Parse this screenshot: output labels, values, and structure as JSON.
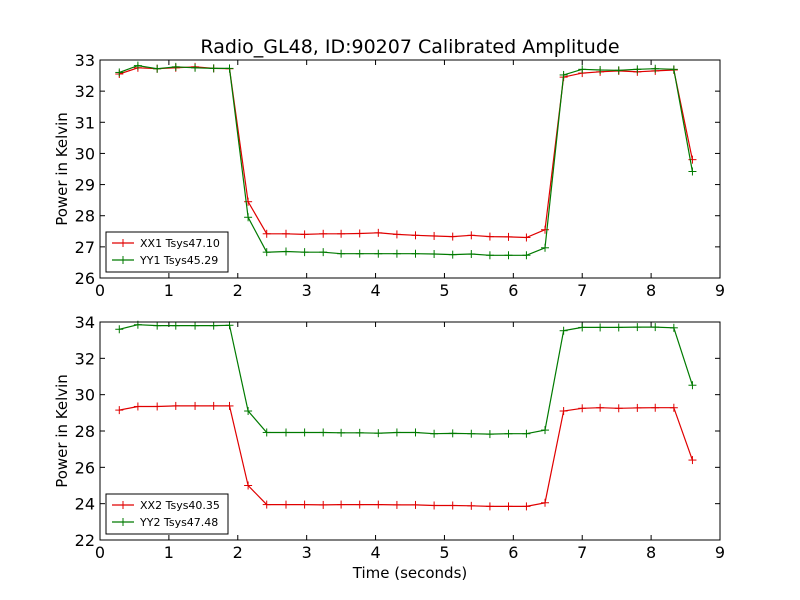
{
  "figure": {
    "title": "Radio_GL48, ID:90207 Calibrated Amplitude",
    "xlabel": "Time (seconds)"
  },
  "colors": {
    "red": "#e00000",
    "green": "#007a00"
  },
  "chart_data": [
    {
      "type": "line",
      "ylabel": "Power in Kelvin",
      "xlim": [
        0,
        9
      ],
      "ylim": [
        26,
        33
      ],
      "xticks": [
        "0",
        "1",
        "2",
        "3",
        "4",
        "5",
        "6",
        "7",
        "8",
        "9"
      ],
      "yticks": [
        "26",
        "27",
        "28",
        "29",
        "30",
        "31",
        "32",
        "33"
      ],
      "legend_position": "lower-left",
      "x": [
        0.28,
        0.55,
        0.83,
        1.1,
        1.38,
        1.65,
        1.88,
        2.15,
        2.42,
        2.7,
        2.97,
        3.24,
        3.5,
        3.77,
        4.04,
        4.31,
        4.58,
        4.85,
        5.12,
        5.39,
        5.66,
        5.93,
        6.19,
        6.46,
        6.73,
        7.0,
        7.26,
        7.53,
        7.8,
        8.06,
        8.33,
        8.6
      ],
      "series": [
        {
          "name": "XX1 Tsys47.10",
          "color": "red",
          "values": [
            32.55,
            32.75,
            32.72,
            32.75,
            32.78,
            32.73,
            32.72,
            28.45,
            27.42,
            27.42,
            27.4,
            27.42,
            27.42,
            27.43,
            27.45,
            27.4,
            27.37,
            27.35,
            27.33,
            27.37,
            27.33,
            27.32,
            27.3,
            27.55,
            32.45,
            32.58,
            32.62,
            32.65,
            32.62,
            32.65,
            32.68,
            29.8
          ]
        },
        {
          "name": "YY1 Tsys45.29",
          "color": "green",
          "values": [
            32.6,
            32.82,
            32.72,
            32.78,
            32.75,
            32.73,
            32.73,
            27.95,
            26.83,
            26.85,
            26.83,
            26.83,
            26.78,
            26.78,
            26.78,
            26.78,
            26.78,
            26.77,
            26.75,
            26.77,
            26.73,
            26.73,
            26.73,
            26.97,
            32.52,
            32.7,
            32.68,
            32.67,
            32.7,
            32.72,
            32.7,
            29.42
          ]
        }
      ]
    },
    {
      "type": "line",
      "ylabel": "Power in Kelvin",
      "xlabel": "Time (seconds)",
      "xlim": [
        0,
        9
      ],
      "ylim": [
        22,
        34
      ],
      "xticks": [
        "0",
        "1",
        "2",
        "3",
        "4",
        "5",
        "6",
        "7",
        "8",
        "9"
      ],
      "yticks": [
        "22",
        "24",
        "26",
        "28",
        "30",
        "32",
        "34"
      ],
      "legend_position": "lower-left",
      "x": [
        0.28,
        0.55,
        0.83,
        1.1,
        1.38,
        1.65,
        1.88,
        2.15,
        2.42,
        2.7,
        2.97,
        3.24,
        3.5,
        3.77,
        4.04,
        4.31,
        4.58,
        4.85,
        5.12,
        5.39,
        5.66,
        5.93,
        6.19,
        6.46,
        6.73,
        7.0,
        7.26,
        7.53,
        7.8,
        8.06,
        8.33,
        8.6
      ],
      "series": [
        {
          "name": "XX2 Tsys40.35",
          "color": "red",
          "values": [
            29.15,
            29.35,
            29.35,
            29.38,
            29.38,
            29.38,
            29.38,
            25.0,
            23.95,
            23.95,
            23.95,
            23.93,
            23.95,
            23.95,
            23.95,
            23.93,
            23.93,
            23.9,
            23.9,
            23.88,
            23.85,
            23.85,
            23.85,
            24.05,
            29.1,
            29.25,
            29.28,
            29.25,
            29.27,
            29.28,
            29.28,
            26.4
          ]
        },
        {
          "name": "YY2 Tsys47.48",
          "color": "green",
          "values": [
            33.6,
            33.85,
            33.8,
            33.8,
            33.8,
            33.8,
            33.82,
            29.1,
            27.92,
            27.92,
            27.92,
            27.92,
            27.9,
            27.9,
            27.88,
            27.92,
            27.92,
            27.85,
            27.87,
            27.85,
            27.83,
            27.85,
            27.85,
            28.05,
            33.52,
            33.7,
            33.7,
            33.7,
            33.72,
            33.72,
            33.68,
            30.52
          ]
        }
      ]
    }
  ]
}
